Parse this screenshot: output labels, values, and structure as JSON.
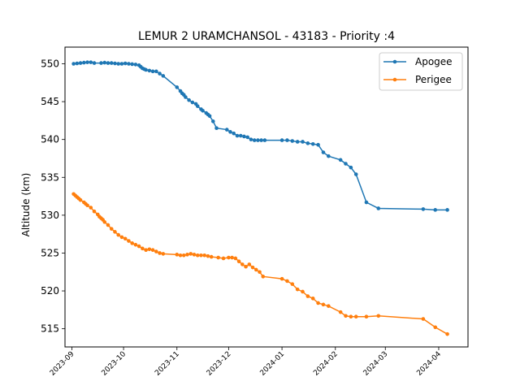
{
  "chart_data": {
    "type": "line",
    "title": "LEMUR 2 URAMCHANSOL - 43183 - Priority :4",
    "xlabel": "",
    "ylabel": "Altitude (km)",
    "ylim": [
      512.6,
      552.2
    ],
    "xlim": [
      "2023-08-28",
      "2024-04-18"
    ],
    "y_ticks": [
      515,
      520,
      525,
      530,
      535,
      540,
      545,
      550
    ],
    "x_ticks": [
      "2023-09",
      "2023-10",
      "2023-11",
      "2023-12",
      "2024-01",
      "2024-02",
      "2024-03",
      "2024-04"
    ],
    "grid": false,
    "legend_position": "top-right",
    "colors": {
      "Apogee": "#1f77b4",
      "Perigee": "#ff7f0e"
    },
    "series": [
      {
        "name": "Apogee",
        "x": [
          "2023-09-02",
          "2023-09-04",
          "2023-09-06",
          "2023-09-08",
          "2023-09-10",
          "2023-09-12",
          "2023-09-14",
          "2023-09-18",
          "2023-09-20",
          "2023-09-22",
          "2023-09-24",
          "2023-09-26",
          "2023-09-28",
          "2023-09-30",
          "2023-10-02",
          "2023-10-04",
          "2023-10-06",
          "2023-10-08",
          "2023-10-10",
          "2023-10-11",
          "2023-10-12",
          "2023-10-13",
          "2023-10-14",
          "2023-10-16",
          "2023-10-18",
          "2023-10-20",
          "2023-10-22",
          "2023-10-24",
          "2023-11-01",
          "2023-11-03",
          "2023-11-04",
          "2023-11-05",
          "2023-11-06",
          "2023-11-08",
          "2023-11-10",
          "2023-11-12",
          "2023-11-13",
          "2023-11-15",
          "2023-11-16",
          "2023-11-18",
          "2023-11-19",
          "2023-11-20",
          "2023-11-22",
          "2023-11-24",
          "2023-11-30",
          "2023-12-02",
          "2023-12-04",
          "2023-12-06",
          "2023-12-08",
          "2023-12-10",
          "2023-12-12",
          "2023-12-14",
          "2023-12-16",
          "2023-12-18",
          "2023-12-20",
          "2023-12-22",
          "2024-01-01",
          "2024-01-04",
          "2024-01-07",
          "2024-01-10",
          "2024-01-13",
          "2024-01-16",
          "2024-01-19",
          "2024-01-22",
          "2024-01-25",
          "2024-01-28",
          "2024-02-04",
          "2024-02-07",
          "2024-02-10",
          "2024-02-13",
          "2024-02-19",
          "2024-02-26",
          "2024-03-23",
          "2024-03-30",
          "2024-04-06"
        ],
        "values": [
          550.0,
          550.05,
          550.1,
          550.15,
          550.2,
          550.2,
          550.1,
          550.1,
          550.15,
          550.1,
          550.1,
          550.05,
          550.0,
          550.0,
          550.05,
          550.0,
          549.95,
          549.9,
          549.8,
          549.6,
          549.4,
          549.3,
          549.2,
          549.1,
          549.0,
          549.0,
          548.7,
          548.4,
          546.9,
          546.4,
          546.1,
          545.9,
          545.6,
          545.2,
          544.9,
          544.7,
          544.4,
          544.0,
          543.8,
          543.5,
          543.3,
          543.1,
          542.4,
          541.5,
          541.3,
          541.0,
          540.8,
          540.5,
          540.5,
          540.4,
          540.3,
          540.0,
          539.9,
          539.9,
          539.9,
          539.9,
          539.9,
          539.9,
          539.8,
          539.7,
          539.7,
          539.5,
          539.4,
          539.3,
          538.3,
          537.8,
          537.3,
          536.8,
          536.3,
          535.4,
          531.7,
          530.9,
          530.8,
          530.7,
          530.7
        ]
      },
      {
        "name": "Perigee",
        "x": [
          "2023-09-02",
          "2023-09-03",
          "2023-09-04",
          "2023-09-05",
          "2023-09-06",
          "2023-09-08",
          "2023-09-09",
          "2023-09-10",
          "2023-09-12",
          "2023-09-14",
          "2023-09-16",
          "2023-09-17",
          "2023-09-18",
          "2023-09-19",
          "2023-09-20",
          "2023-09-22",
          "2023-09-24",
          "2023-09-26",
          "2023-09-28",
          "2023-09-30",
          "2023-10-02",
          "2023-10-04",
          "2023-10-06",
          "2023-10-08",
          "2023-10-10",
          "2023-10-12",
          "2023-10-14",
          "2023-10-16",
          "2023-10-18",
          "2023-10-20",
          "2023-10-22",
          "2023-10-24",
          "2023-11-01",
          "2023-11-03",
          "2023-11-05",
          "2023-11-07",
          "2023-11-09",
          "2023-11-11",
          "2023-11-13",
          "2023-11-15",
          "2023-11-17",
          "2023-11-19",
          "2023-11-21",
          "2023-11-25",
          "2023-11-28",
          "2023-12-01",
          "2023-12-03",
          "2023-12-05",
          "2023-12-07",
          "2023-12-09",
          "2023-12-11",
          "2023-12-13",
          "2023-12-15",
          "2023-12-17",
          "2023-12-19",
          "2023-12-21",
          "2024-01-01",
          "2024-01-04",
          "2024-01-07",
          "2024-01-10",
          "2024-01-13",
          "2024-01-16",
          "2024-01-19",
          "2024-01-22",
          "2024-01-25",
          "2024-01-28",
          "2024-02-04",
          "2024-02-07",
          "2024-02-10",
          "2024-02-13",
          "2024-02-19",
          "2024-02-26",
          "2024-03-23",
          "2024-03-30",
          "2024-04-06"
        ],
        "values": [
          532.8,
          532.6,
          532.4,
          532.2,
          532.0,
          531.7,
          531.5,
          531.3,
          531.0,
          530.5,
          530.1,
          529.8,
          529.6,
          529.4,
          529.1,
          528.7,
          528.2,
          527.8,
          527.4,
          527.1,
          526.9,
          526.6,
          526.3,
          526.1,
          525.9,
          525.6,
          525.4,
          525.5,
          525.4,
          525.2,
          525.0,
          524.9,
          524.8,
          524.7,
          524.7,
          524.8,
          524.9,
          524.8,
          524.7,
          524.7,
          524.7,
          524.6,
          524.5,
          524.4,
          524.3,
          524.4,
          524.4,
          524.3,
          523.9,
          523.5,
          523.2,
          523.5,
          523.1,
          522.8,
          522.5,
          521.9,
          521.6,
          521.3,
          520.9,
          520.2,
          519.9,
          519.3,
          519.0,
          518.4,
          518.2,
          518.0,
          517.2,
          516.7,
          516.6,
          516.6,
          516.6,
          516.7,
          516.3,
          515.2,
          514.3
        ]
      }
    ]
  }
}
